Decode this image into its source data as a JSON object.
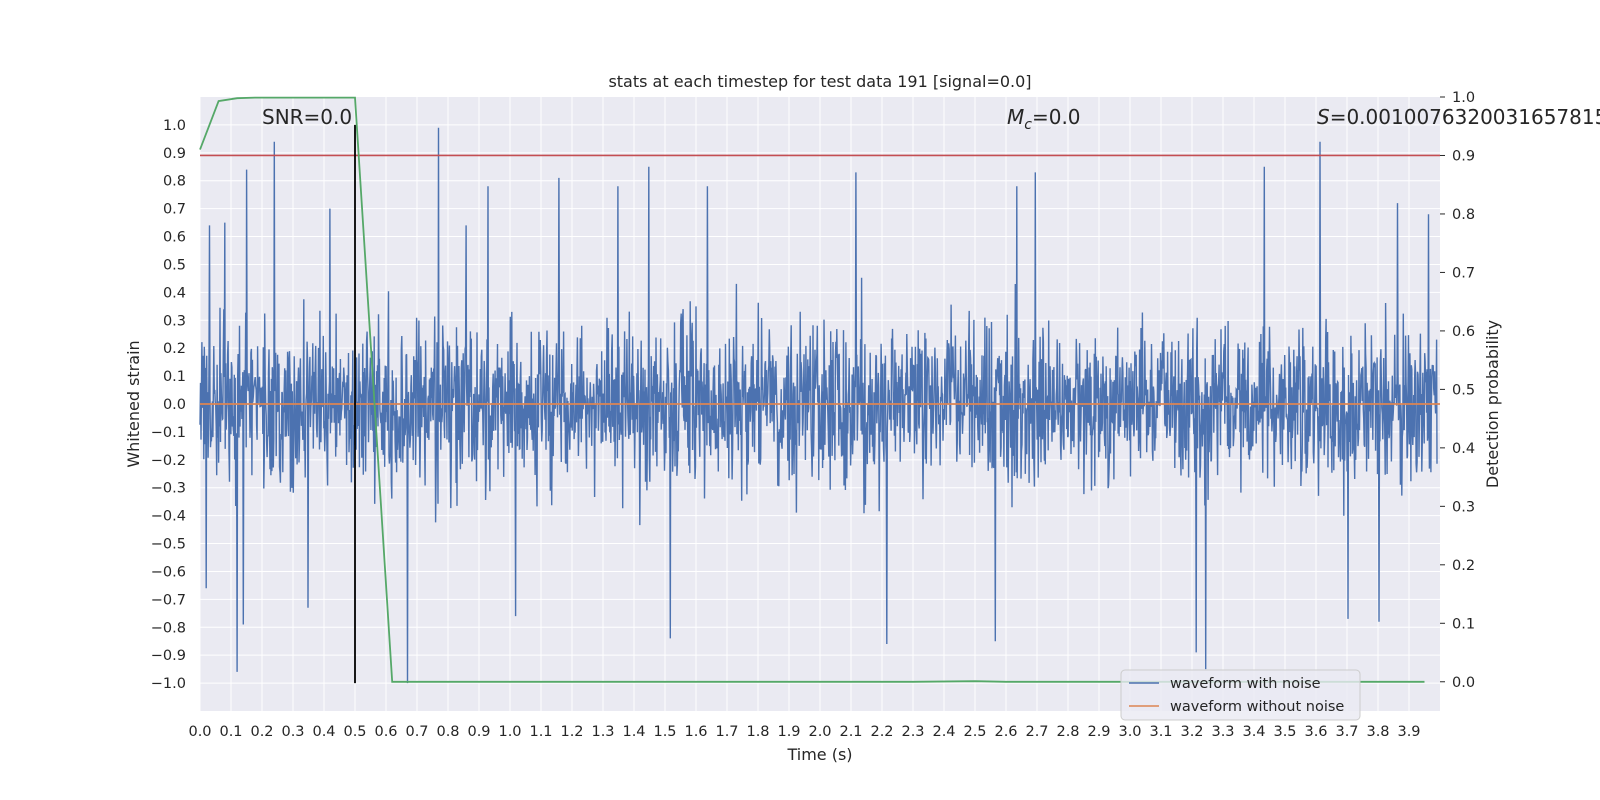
{
  "chart_data": {
    "type": "line",
    "title": "stats at each timestep for test data 191 [signal=0.0]",
    "xlabel": "Time (s)",
    "ylabel": "Whitened strain",
    "y2label": "Detection probability",
    "xlim": [
      0.0,
      4.0
    ],
    "ylim": [
      -1.1,
      1.1
    ],
    "y2lim": [
      -0.05,
      1.0
    ],
    "x_ticks": [
      "0.0",
      "0.1",
      "0.2",
      "0.3",
      "0.4",
      "0.5",
      "0.6",
      "0.7",
      "0.8",
      "0.9",
      "1.0",
      "1.1",
      "1.2",
      "1.3",
      "1.4",
      "1.5",
      "1.6",
      "1.7",
      "1.8",
      "1.9",
      "2.0",
      "2.1",
      "2.2",
      "2.3",
      "2.4",
      "2.5",
      "2.6",
      "2.7",
      "2.8",
      "2.9",
      "3.0",
      "3.1",
      "3.2",
      "3.3",
      "3.4",
      "3.5",
      "3.6",
      "3.7",
      "3.8",
      "3.9"
    ],
    "y_ticks": [
      "1.0",
      "0.9",
      "0.8",
      "0.7",
      "0.6",
      "0.5",
      "0.4",
      "0.3",
      "0.2",
      "0.1",
      "0.0",
      "−0.1",
      "−0.2",
      "−0.3",
      "−0.4",
      "−0.5",
      "−0.6",
      "−0.7",
      "−0.8",
      "−0.9",
      "−1.0"
    ],
    "y2_ticks": [
      "1.0",
      "0.9",
      "0.8",
      "0.7",
      "0.6",
      "0.5",
      "0.4",
      "0.3",
      "0.2",
      "0.1",
      "0.0"
    ],
    "annotations": {
      "snr": "SNR=0.0",
      "mc_symbol": "M",
      "mc_sub": "c",
      "mc_value": "=0.0",
      "s_symbol": "S",
      "s_value": "=0.0010076320031657815"
    },
    "legend": {
      "position": "lower-right",
      "entries": [
        "waveform with noise",
        "waveform without noise"
      ]
    },
    "colors": {
      "noise": "#4c72b0",
      "clean": "#dd8452",
      "probability": "#55a868",
      "threshold": "#c44e52",
      "marker": "#000000",
      "background": "#eaeaf2",
      "grid": "#ffffff"
    },
    "series": [
      {
        "name": "waveform with noise",
        "axis": "left",
        "description_kind": "noise-envelope",
        "envelope_peaks": [
          [
            0.03,
            0.64
          ],
          [
            0.08,
            0.65
          ],
          [
            0.12,
            0.78
          ],
          [
            0.15,
            0.84
          ],
          [
            0.24,
            0.94
          ],
          [
            0.42,
            0.7
          ],
          [
            0.77,
            0.99
          ],
          [
            0.86,
            0.64
          ],
          [
            0.93,
            0.78
          ],
          [
            1.16,
            0.81
          ],
          [
            1.35,
            0.78
          ],
          [
            1.45,
            0.85
          ],
          [
            1.64,
            0.78
          ],
          [
            2.12,
            0.83
          ],
          [
            2.64,
            0.78
          ],
          [
            2.7,
            0.83
          ],
          [
            3.44,
            0.85
          ],
          [
            3.62,
            0.94
          ],
          [
            3.87,
            0.72
          ],
          [
            3.97,
            0.68
          ]
        ],
        "envelope_troughs": [
          [
            0.02,
            -0.66
          ],
          [
            0.12,
            -0.96
          ],
          [
            0.14,
            -0.79
          ],
          [
            0.35,
            -0.73
          ],
          [
            0.67,
            -1.0
          ],
          [
            1.02,
            -0.76
          ],
          [
            1.52,
            -0.84
          ],
          [
            2.22,
            -0.86
          ],
          [
            2.57,
            -0.85
          ],
          [
            3.22,
            -0.89
          ],
          [
            3.25,
            -0.95
          ],
          [
            3.71,
            -0.77
          ],
          [
            3.81,
            -0.78
          ]
        ]
      },
      {
        "name": "waveform without noise",
        "axis": "left",
        "x": [
          0.0,
          4.0
        ],
        "y": [
          0.0,
          0.0
        ]
      },
      {
        "name": "detection probability",
        "axis": "right",
        "x": [
          0.0,
          0.06,
          0.12,
          0.18,
          0.25,
          0.31,
          0.37,
          0.44,
          0.5,
          0.56,
          0.62,
          0.68,
          0.75,
          1.0,
          1.5,
          2.0,
          2.3,
          2.5,
          2.6,
          3.0,
          3.5,
          3.95
        ],
        "y": [
          0.91,
          0.993,
          0.998,
          0.999,
          0.999,
          0.999,
          0.999,
          0.999,
          0.999,
          0.5,
          0.0,
          0.0,
          0.0,
          0.0,
          0.0,
          0.0,
          0.0,
          0.001,
          0.0,
          0.0,
          0.0,
          0.0
        ]
      }
    ],
    "threshold_line": {
      "axis": "right",
      "y": 0.9
    },
    "marker_line": {
      "x": 0.5,
      "y_range": [
        -1.0,
        1.0
      ]
    }
  }
}
